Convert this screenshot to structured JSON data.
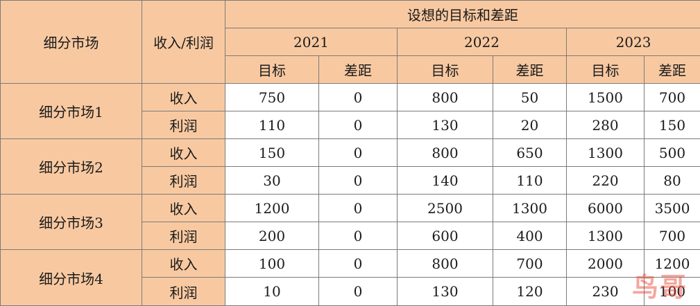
{
  "header": {
    "segment": "细分市场",
    "metric": "收入/利润",
    "group": "设想的目标和差距",
    "years": [
      "2021",
      "2022",
      "2023"
    ],
    "target": "目标",
    "gap": "差距"
  },
  "segments": [
    {
      "name": "细分市场1",
      "rows": [
        {
          "metric": "收入",
          "vals": [
            "750",
            "0",
            "800",
            "50",
            "1500",
            "700"
          ]
        },
        {
          "metric": "利润",
          "vals": [
            "110",
            "0",
            "130",
            "20",
            "280",
            "150"
          ]
        }
      ]
    },
    {
      "name": "细分市场2",
      "rows": [
        {
          "metric": "收入",
          "vals": [
            "150",
            "0",
            "800",
            "650",
            "1300",
            "500"
          ]
        },
        {
          "metric": "利润",
          "vals": [
            "30",
            "0",
            "140",
            "110",
            "220",
            "80"
          ]
        }
      ]
    },
    {
      "name": "细分市场3",
      "rows": [
        {
          "metric": "收入",
          "vals": [
            "1200",
            "0",
            "2500",
            "1300",
            "6000",
            "3500"
          ]
        },
        {
          "metric": "利润",
          "vals": [
            "200",
            "0",
            "600",
            "400",
            "1300",
            "700"
          ]
        }
      ]
    },
    {
      "name": "细分市场4",
      "rows": [
        {
          "metric": "收入",
          "vals": [
            "100",
            "0",
            "800",
            "700",
            "2000",
            "1200"
          ]
        },
        {
          "metric": "利润",
          "vals": [
            "10",
            "0",
            "130",
            "120",
            "230",
            "100"
          ]
        }
      ]
    }
  ],
  "watermark": "鸟哥",
  "colors": {
    "header_fill": "#f8c9a1",
    "border": "#7a7a7a",
    "text": "#1a1a1a"
  }
}
